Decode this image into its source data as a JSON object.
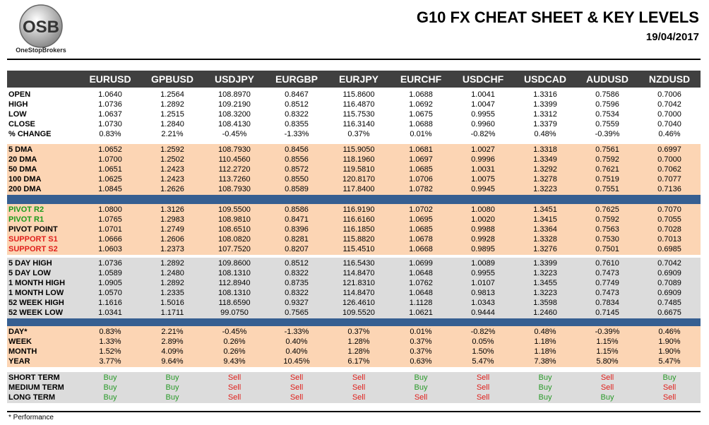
{
  "header": {
    "logo_text": "OSB",
    "brand": "OneStopBrokers",
    "title": "G10 FX CHEAT SHEET & KEY LEVELS",
    "date": "19/04/2017"
  },
  "table": {
    "columns": [
      "EURUSD",
      "GPBUSD",
      "USDJPY",
      "EURGBP",
      "EURJPY",
      "EURCHF",
      "USDCHF",
      "USDCAD",
      "AUDUSD",
      "NZDUSD"
    ],
    "sections": [
      {
        "rows": [
          {
            "label": "OPEN",
            "values": [
              "1.0640",
              "1.2564",
              "108.8970",
              "0.8467",
              "115.8600",
              "1.0688",
              "1.0041",
              "1.3316",
              "0.7586",
              "0.7006"
            ]
          },
          {
            "label": "HIGH",
            "values": [
              "1.0736",
              "1.2892",
              "109.2190",
              "0.8512",
              "116.4870",
              "1.0692",
              "1.0047",
              "1.3399",
              "0.7596",
              "0.7042"
            ]
          },
          {
            "label": "LOW",
            "values": [
              "1.0637",
              "1.2515",
              "108.3200",
              "0.8322",
              "115.7530",
              "1.0675",
              "0.9955",
              "1.3312",
              "0.7534",
              "0.7000"
            ]
          },
          {
            "label": "CLOSE",
            "values": [
              "1.0730",
              "1.2840",
              "108.4130",
              "0.8355",
              "116.3140",
              "1.0688",
              "0.9960",
              "1.3379",
              "0.7559",
              "0.7040"
            ]
          },
          {
            "label": "% CHANGE",
            "values": [
              "0.83%",
              "2.21%",
              "-0.45%",
              "-1.33%",
              "0.37%",
              "0.01%",
              "-0.82%",
              "0.48%",
              "-0.39%",
              "0.46%"
            ]
          }
        ]
      },
      {
        "rows": [
          {
            "label": "5 DMA",
            "values": [
              "1.0652",
              "1.2592",
              "108.7930",
              "0.8456",
              "115.9050",
              "1.0681",
              "1.0027",
              "1.3318",
              "0.7561",
              "0.6997"
            ]
          },
          {
            "label": "20 DMA",
            "values": [
              "1.0700",
              "1.2502",
              "110.4560",
              "0.8556",
              "118.1960",
              "1.0697",
              "0.9996",
              "1.3349",
              "0.7592",
              "0.7000"
            ]
          },
          {
            "label": "50 DMA",
            "values": [
              "1.0651",
              "1.2423",
              "112.2720",
              "0.8572",
              "119.5810",
              "1.0685",
              "1.0031",
              "1.3292",
              "0.7621",
              "0.7062"
            ]
          },
          {
            "label": "100 DMA",
            "values": [
              "1.0625",
              "1.2423",
              "113.7260",
              "0.8550",
              "120.8170",
              "1.0706",
              "1.0075",
              "1.3278",
              "0.7519",
              "0.7077"
            ]
          },
          {
            "label": "200 DMA",
            "values": [
              "1.0845",
              "1.2626",
              "108.7930",
              "0.8589",
              "117.8400",
              "1.0782",
              "0.9945",
              "1.3223",
              "0.7551",
              "0.7136"
            ]
          }
        ]
      },
      {
        "rows": [
          {
            "label": "PIVOT R2",
            "label_color": "#1a9a1a",
            "values": [
              "1.0800",
              "1.3126",
              "109.5500",
              "0.8586",
              "116.9190",
              "1.0702",
              "1.0080",
              "1.3451",
              "0.7625",
              "0.7070"
            ]
          },
          {
            "label": "PIVOT R1",
            "label_color": "#1a9a1a",
            "values": [
              "1.0765",
              "1.2983",
              "108.9810",
              "0.8471",
              "116.6160",
              "1.0695",
              "1.0020",
              "1.3415",
              "0.7592",
              "0.7055"
            ]
          },
          {
            "label": "PIVOT POINT",
            "values": [
              "1.0701",
              "1.2749",
              "108.6510",
              "0.8396",
              "116.1850",
              "1.0685",
              "0.9988",
              "1.3364",
              "0.7563",
              "0.7028"
            ]
          },
          {
            "label": "SUPPORT S1",
            "label_color": "#e0201c",
            "values": [
              "1.0666",
              "1.2606",
              "108.0820",
              "0.8281",
              "115.8820",
              "1.0678",
              "0.9928",
              "1.3328",
              "0.7530",
              "0.7013"
            ]
          },
          {
            "label": "SUPPORT S2",
            "label_color": "#e0201c",
            "values": [
              "1.0603",
              "1.2373",
              "107.7520",
              "0.8207",
              "115.4510",
              "1.0668",
              "0.9895",
              "1.3276",
              "0.7501",
              "0.6985"
            ]
          }
        ]
      },
      {
        "rows": [
          {
            "label": "5 DAY HIGH",
            "values": [
              "1.0736",
              "1.2892",
              "109.8600",
              "0.8512",
              "116.5430",
              "1.0699",
              "1.0089",
              "1.3399",
              "0.7610",
              "0.7042"
            ]
          },
          {
            "label": "5 DAY LOW",
            "values": [
              "1.0589",
              "1.2480",
              "108.1310",
              "0.8322",
              "114.8470",
              "1.0648",
              "0.9955",
              "1.3223",
              "0.7473",
              "0.6909"
            ]
          },
          {
            "label": "1 MONTH HIGH",
            "values": [
              "1.0905",
              "1.2892",
              "112.8940",
              "0.8735",
              "121.8310",
              "1.0762",
              "1.0107",
              "1.3455",
              "0.7749",
              "0.7089"
            ]
          },
          {
            "label": "1 MONTH LOW",
            "values": [
              "1.0570",
              "1.2335",
              "108.1310",
              "0.8322",
              "114.8470",
              "1.0648",
              "0.9813",
              "1.3223",
              "0.7473",
              "0.6909"
            ]
          },
          {
            "label": "52 WEEK HIGH",
            "values": [
              "1.1616",
              "1.5016",
              "118.6590",
              "0.9327",
              "126.4610",
              "1.1128",
              "1.0343",
              "1.3598",
              "0.7834",
              "0.7485"
            ]
          },
          {
            "label": "52 WEEK LOW",
            "values": [
              "1.0341",
              "1.1711",
              "99.0750",
              "0.7565",
              "109.5520",
              "1.0621",
              "0.9444",
              "1.2460",
              "0.7145",
              "0.6675"
            ]
          }
        ]
      },
      {
        "rows": [
          {
            "label": "DAY*",
            "values": [
              "0.83%",
              "2.21%",
              "-0.45%",
              "-1.33%",
              "0.37%",
              "0.01%",
              "-0.82%",
              "0.48%",
              "-0.39%",
              "0.46%"
            ]
          },
          {
            "label": "WEEK",
            "values": [
              "1.33%",
              "2.89%",
              "0.26%",
              "0.40%",
              "1.28%",
              "0.37%",
              "0.05%",
              "1.18%",
              "1.15%",
              "1.90%"
            ]
          },
          {
            "label": "MONTH",
            "values": [
              "1.52%",
              "4.09%",
              "0.26%",
              "0.40%",
              "1.28%",
              "0.37%",
              "1.50%",
              "1.18%",
              "1.15%",
              "1.90%"
            ]
          },
          {
            "label": "YEAR",
            "values": [
              "3.77%",
              "9.64%",
              "9.43%",
              "10.45%",
              "6.17%",
              "0.63%",
              "5.47%",
              "7.38%",
              "5.80%",
              "5.47%"
            ]
          }
        ]
      },
      {
        "value_colors": {
          "Buy": "#2a9a2a",
          "Sell": "#e0201c"
        },
        "rows": [
          {
            "label": "SHORT TERM",
            "values": [
              "Buy",
              "Buy",
              "Sell",
              "Sell",
              "Sell",
              "Buy",
              "Sell",
              "Buy",
              "Sell",
              "Buy"
            ]
          },
          {
            "label": "MEDIUM TERM",
            "values": [
              "Buy",
              "Buy",
              "Sell",
              "Sell",
              "Sell",
              "Buy",
              "Sell",
              "Buy",
              "Sell",
              "Sell"
            ]
          },
          {
            "label": "LONG TERM",
            "values": [
              "Buy",
              "Buy",
              "Sell",
              "Sell",
              "Sell",
              "Sell",
              "Sell",
              "Buy",
              "Buy",
              "Sell"
            ]
          }
        ]
      }
    ]
  },
  "footnote": "* Performance"
}
